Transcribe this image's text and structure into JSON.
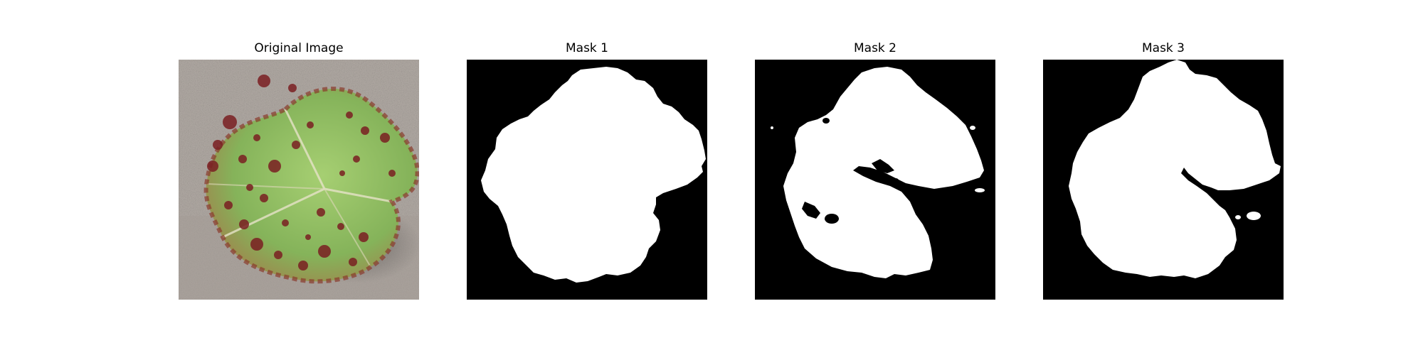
{
  "figure": {
    "panels": [
      {
        "title": "Original Image"
      },
      {
        "title": "Mask 1"
      },
      {
        "title": "Mask 2"
      },
      {
        "title": "Mask 3"
      }
    ]
  },
  "colors": {
    "background": "#ffffff",
    "mask_background": "#000000",
    "mask_foreground": "#ffffff",
    "leaf_green": "#8cb85a",
    "leaf_spot": "#7a1f22",
    "ground": "#a9a19a"
  }
}
